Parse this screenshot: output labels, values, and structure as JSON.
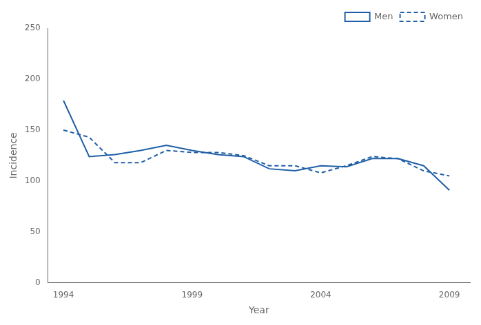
{
  "chart_data": {
    "type": "line",
    "x": [
      1994,
      1995,
      1996,
      1997,
      1998,
      1999,
      2000,
      2001,
      2002,
      2003,
      2004,
      2005,
      2006,
      2007,
      2008,
      2009
    ],
    "series": [
      {
        "name": "Men",
        "color": "#1f5fa6",
        "line_style": "solid",
        "values": [
          179,
          124,
          126,
          130,
          135,
          130,
          126,
          124,
          112,
          110,
          115,
          114,
          122,
          122,
          115,
          91
        ]
      },
      {
        "name": "Women",
        "color": "#1f5fa6",
        "line_style": "dashed",
        "values": [
          150,
          143,
          118,
          118,
          130,
          128,
          128,
          125,
          115,
          115,
          108,
          115,
          124,
          122,
          110,
          105
        ]
      }
    ],
    "xlabel": "Year",
    "ylabel": "Incidence",
    "xlim": [
      1993.4,
      2009.8
    ],
    "xticks": [
      1994,
      1999,
      2004,
      2009
    ],
    "ylim": [
      0,
      250
    ],
    "yticks": [
      0,
      50,
      100,
      150,
      200,
      250
    ],
    "grid": false,
    "legend": "upper right"
  }
}
